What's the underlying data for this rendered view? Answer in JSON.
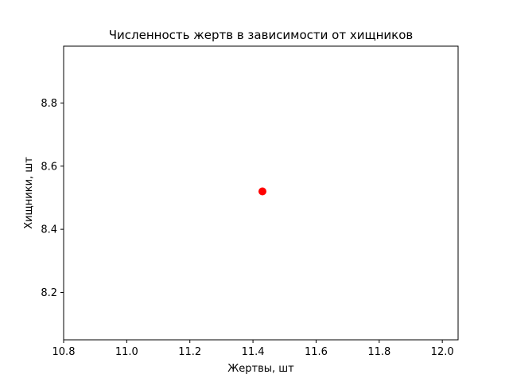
{
  "chart_data": {
    "type": "scatter",
    "title": "Численность жертв в зависимости от хищников",
    "xlabel": "Жертвы, шт",
    "ylabel": "Хищники, шт",
    "xlim": [
      10.8,
      12.05
    ],
    "ylim": [
      8.05,
      8.98
    ],
    "xticks": [
      10.8,
      11.0,
      11.2,
      11.4,
      11.6,
      11.8,
      12.0
    ],
    "xtick_labels": [
      "10.8",
      "11.0",
      "11.2",
      "11.4",
      "11.6",
      "11.8",
      "12.0"
    ],
    "yticks": [
      8.2,
      8.4,
      8.6,
      8.8
    ],
    "ytick_labels": [
      "8.2",
      "8.4",
      "8.6",
      "8.8"
    ],
    "grid": false,
    "points": [
      {
        "x": 11.43,
        "y": 8.52
      }
    ],
    "marker_color": "#ff0000"
  }
}
